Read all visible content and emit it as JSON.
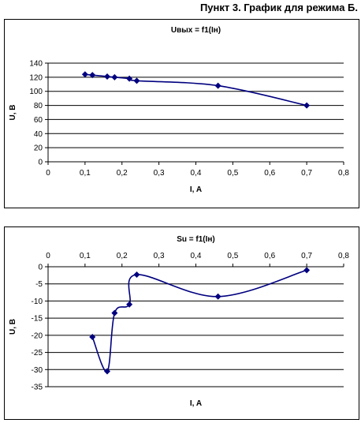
{
  "heading": "Пункт 3. График для режима Б.",
  "chart_data": [
    {
      "type": "line",
      "title": "Uвых = f1(Iн)",
      "xlabel": "I, A",
      "ylabel": "U, B",
      "xlim": [
        0,
        0.8
      ],
      "ylim": [
        0,
        140
      ],
      "x_ticks": [
        "0",
        "0,1",
        "0,2",
        "0,3",
        "0,4",
        "0,5",
        "0,6",
        "0,7",
        "0,8"
      ],
      "y_ticks": [
        "0",
        "20",
        "40",
        "60",
        "80",
        "100",
        "120",
        "140"
      ],
      "x_axis_position": "bottom",
      "grid": "horizontal",
      "legend": "none",
      "marker": "diamond",
      "color": "#00007f",
      "series": [
        {
          "x": [
            0.1,
            0.12,
            0.16,
            0.18,
            0.22,
            0.24,
            0.46,
            0.7
          ],
          "y": [
            124,
            123,
            121,
            120,
            118,
            115,
            108,
            80
          ]
        }
      ]
    },
    {
      "type": "line",
      "title": "Su = f1(Iн)",
      "xlabel": "I, A",
      "ylabel": "U, B",
      "xlim": [
        0,
        0.8
      ],
      "ylim": [
        -35,
        0
      ],
      "x_ticks": [
        "0",
        "0,1",
        "0,2",
        "0,3",
        "0,4",
        "0,5",
        "0,6",
        "0,7",
        "0,8"
      ],
      "y_ticks": [
        "-35",
        "-30",
        "-25",
        "-20",
        "-15",
        "-10",
        "-5",
        "0"
      ],
      "x_axis_position": "top",
      "grid": "horizontal",
      "legend": "none",
      "marker": "diamond",
      "color": "#00007f",
      "series": [
        {
          "x": [
            0.12,
            0.16,
            0.18,
            0.22,
            0.24,
            0.46,
            0.7
          ],
          "y": [
            -20.5,
            -30.5,
            -13.5,
            -11,
            -2.3,
            -8.7,
            -1
          ]
        }
      ]
    }
  ]
}
